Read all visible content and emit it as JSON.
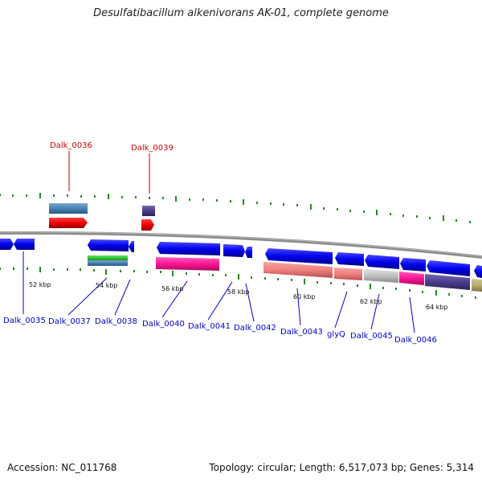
{
  "title": "Desulfatibacillum alkenivorans AK-01, complete genome",
  "footer": {
    "accession": "Accession: NC_011768",
    "summary": "Topology: circular; Length: 6,517,073 bp; Genes: 5,314"
  },
  "colors": {
    "top_label": "#cc0000",
    "bottom_label": "#0000cc",
    "backbone": "#888888",
    "tick": "#228b22",
    "blue_gene": "#0000ee",
    "red_gene": "#ee0000"
  },
  "scale_labels": [
    "52 kbp",
    "54 kbp",
    "56 kbp",
    "58 kbp",
    "60 kbp",
    "62 kbp",
    "64 kbp"
  ],
  "top_labels": [
    "Dalk_0036",
    "Dalk_0039"
  ],
  "bottom_labels": [
    "Dalk_0035",
    "Dalk_0037",
    "Dalk_0038",
    "Dalk_0040",
    "Dalk_0041",
    "Dalk_0042",
    "Dalk_0043",
    "glyQ",
    "Dalk_0045",
    "Dalk_0046"
  ]
}
